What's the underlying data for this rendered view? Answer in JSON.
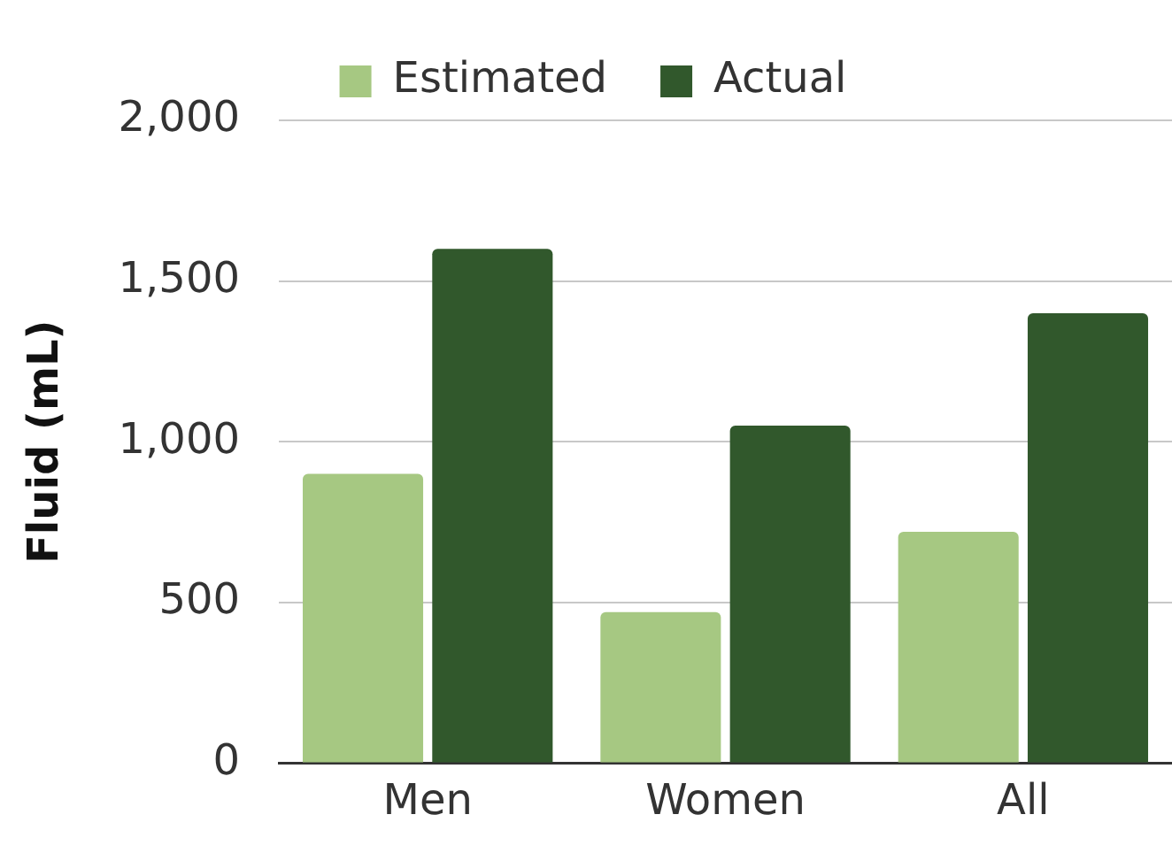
{
  "chart_data": {
    "type": "bar",
    "ylabel": "Fluid (mL)",
    "categories": [
      "Men",
      "Women",
      "All"
    ],
    "series": [
      {
        "name": "Estimated",
        "color": "#a6c882",
        "values": [
          900,
          470,
          720
        ]
      },
      {
        "name": "Actual",
        "color": "#31582c",
        "values": [
          1600,
          1050,
          1400
        ]
      }
    ],
    "ylim": [
      0,
      2000
    ],
    "yticks": [
      {
        "value": 0,
        "label": "0"
      },
      {
        "value": 500,
        "label": "500"
      },
      {
        "value": 1000,
        "label": "1,000"
      },
      {
        "value": 1500,
        "label": "1,500"
      },
      {
        "value": 2000,
        "label": "2,000"
      }
    ],
    "grid": "y",
    "legend": "top"
  }
}
